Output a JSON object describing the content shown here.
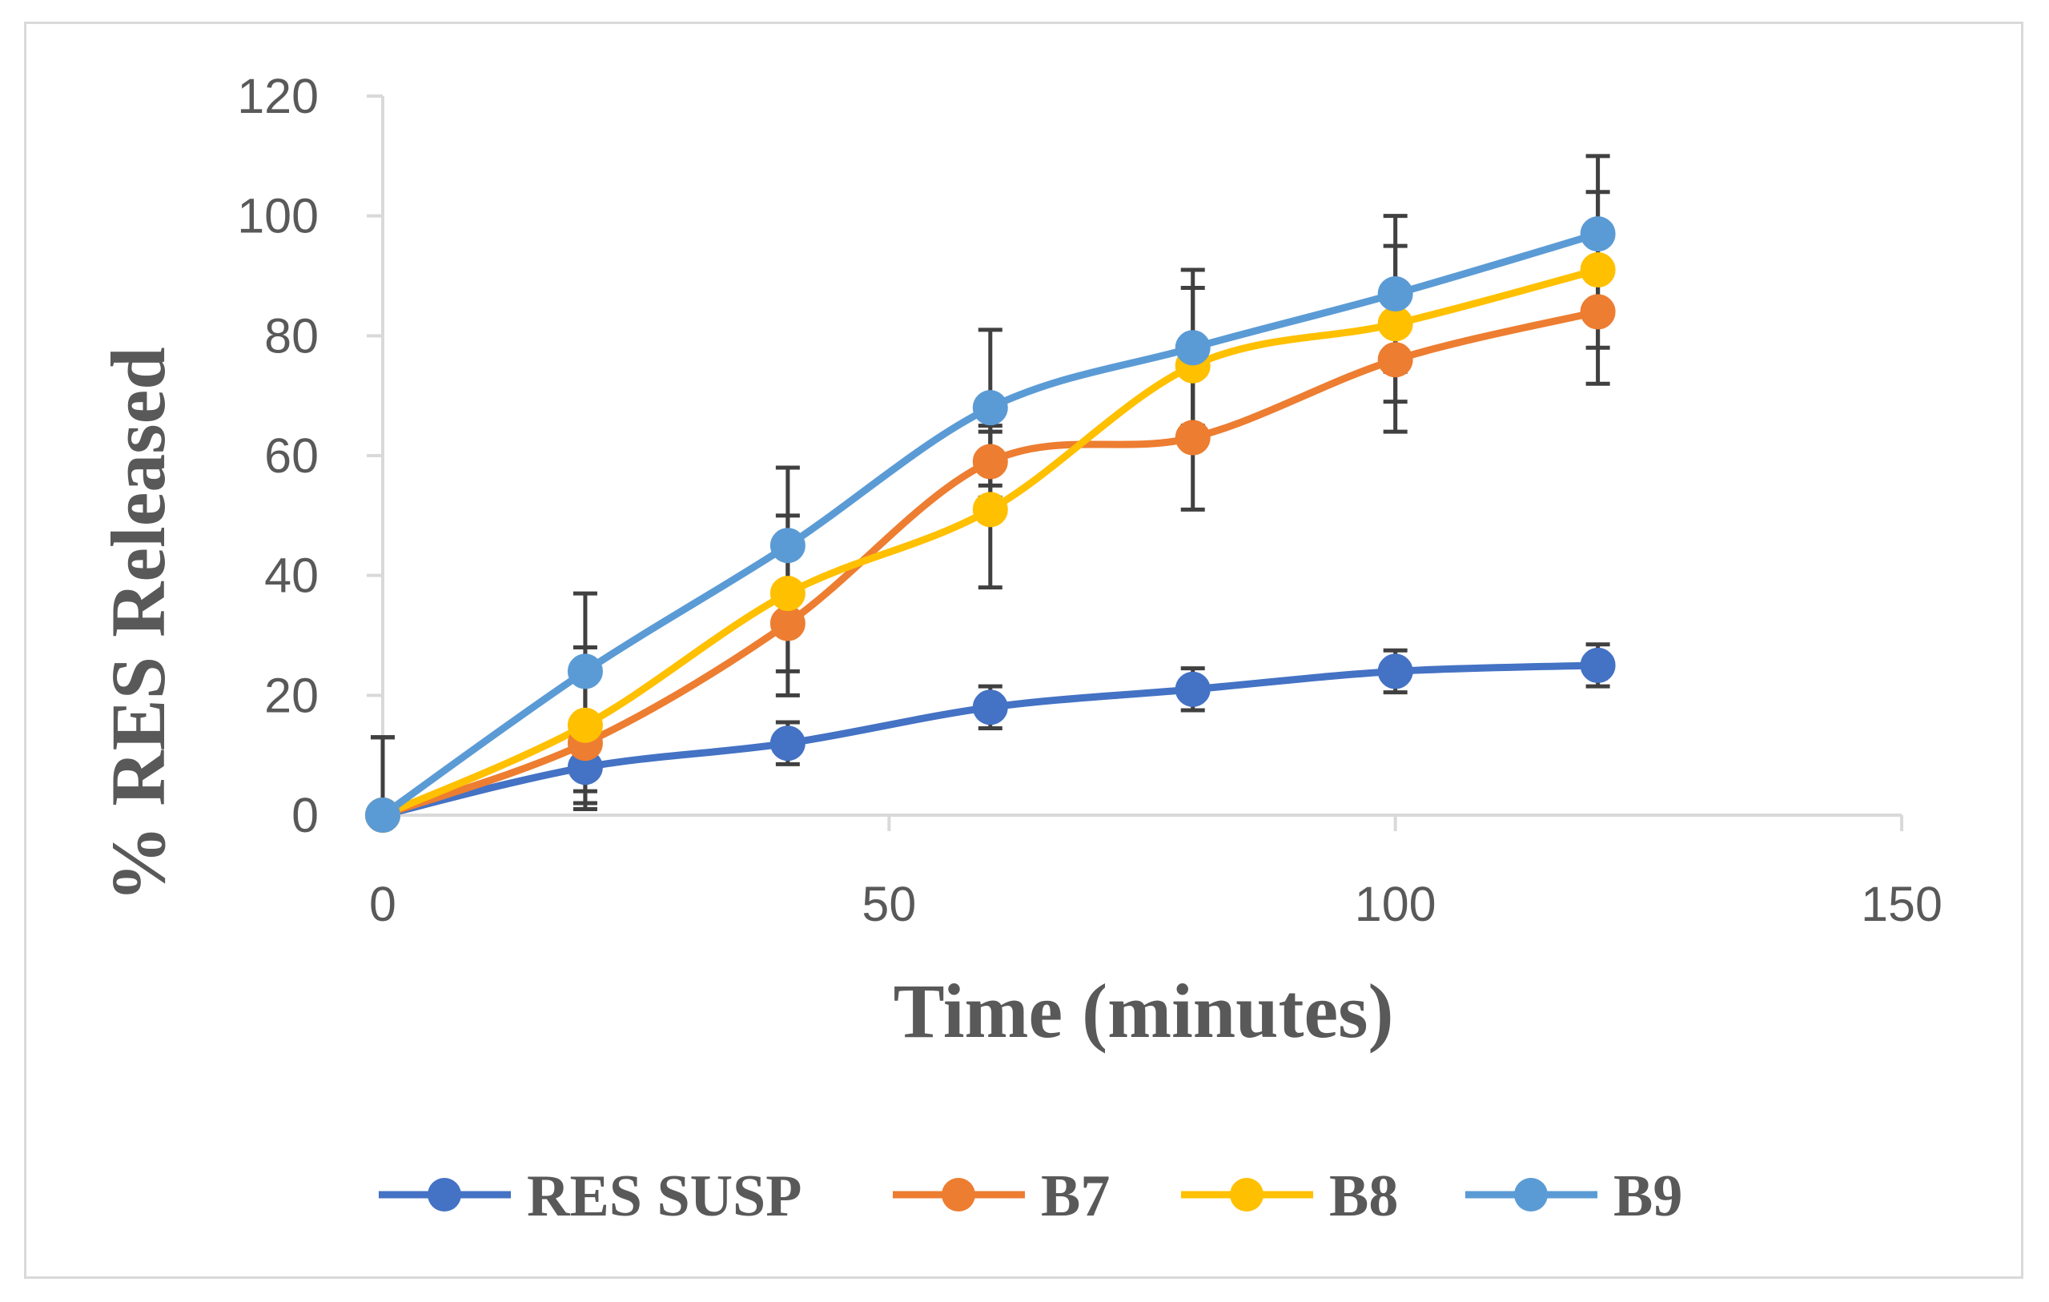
{
  "chart_data": {
    "type": "line",
    "title": "",
    "xlabel": "Time (minutes)",
    "ylabel": "% RES Released",
    "xlim": [
      0,
      150
    ],
    "ylim": [
      0,
      120
    ],
    "x_ticks": [
      0,
      50,
      100,
      150
    ],
    "y_ticks": [
      0,
      20,
      40,
      60,
      80,
      100,
      120
    ],
    "grid": false,
    "legend_position": "bottom",
    "smooth": true,
    "x": [
      0,
      20,
      40,
      60,
      80,
      100,
      120
    ],
    "series": [
      {
        "name": "RES SUSP",
        "color": "#4472c4",
        "values": [
          0,
          8,
          12,
          18,
          21,
          24,
          25
        ],
        "error": [
          0,
          4,
          3.5,
          3.5,
          3.5,
          3.5,
          3.5
        ]
      },
      {
        "name": "B7",
        "color": "#ed7d31",
        "values": [
          0,
          12,
          32,
          59,
          63,
          76,
          84
        ],
        "error": [
          13,
          11,
          12,
          6,
          12,
          12,
          12
        ]
      },
      {
        "name": "B8",
        "color": "#ffc000",
        "values": [
          0,
          15,
          37,
          51,
          75,
          82,
          91
        ],
        "error": [
          13,
          13,
          13,
          13,
          13,
          13,
          13
        ]
      },
      {
        "name": "B9",
        "color": "#5b9bd5",
        "values": [
          0,
          24,
          45,
          68,
          78,
          87,
          97
        ],
        "error": [
          13,
          13,
          13,
          13,
          13,
          13,
          13
        ]
      }
    ]
  }
}
